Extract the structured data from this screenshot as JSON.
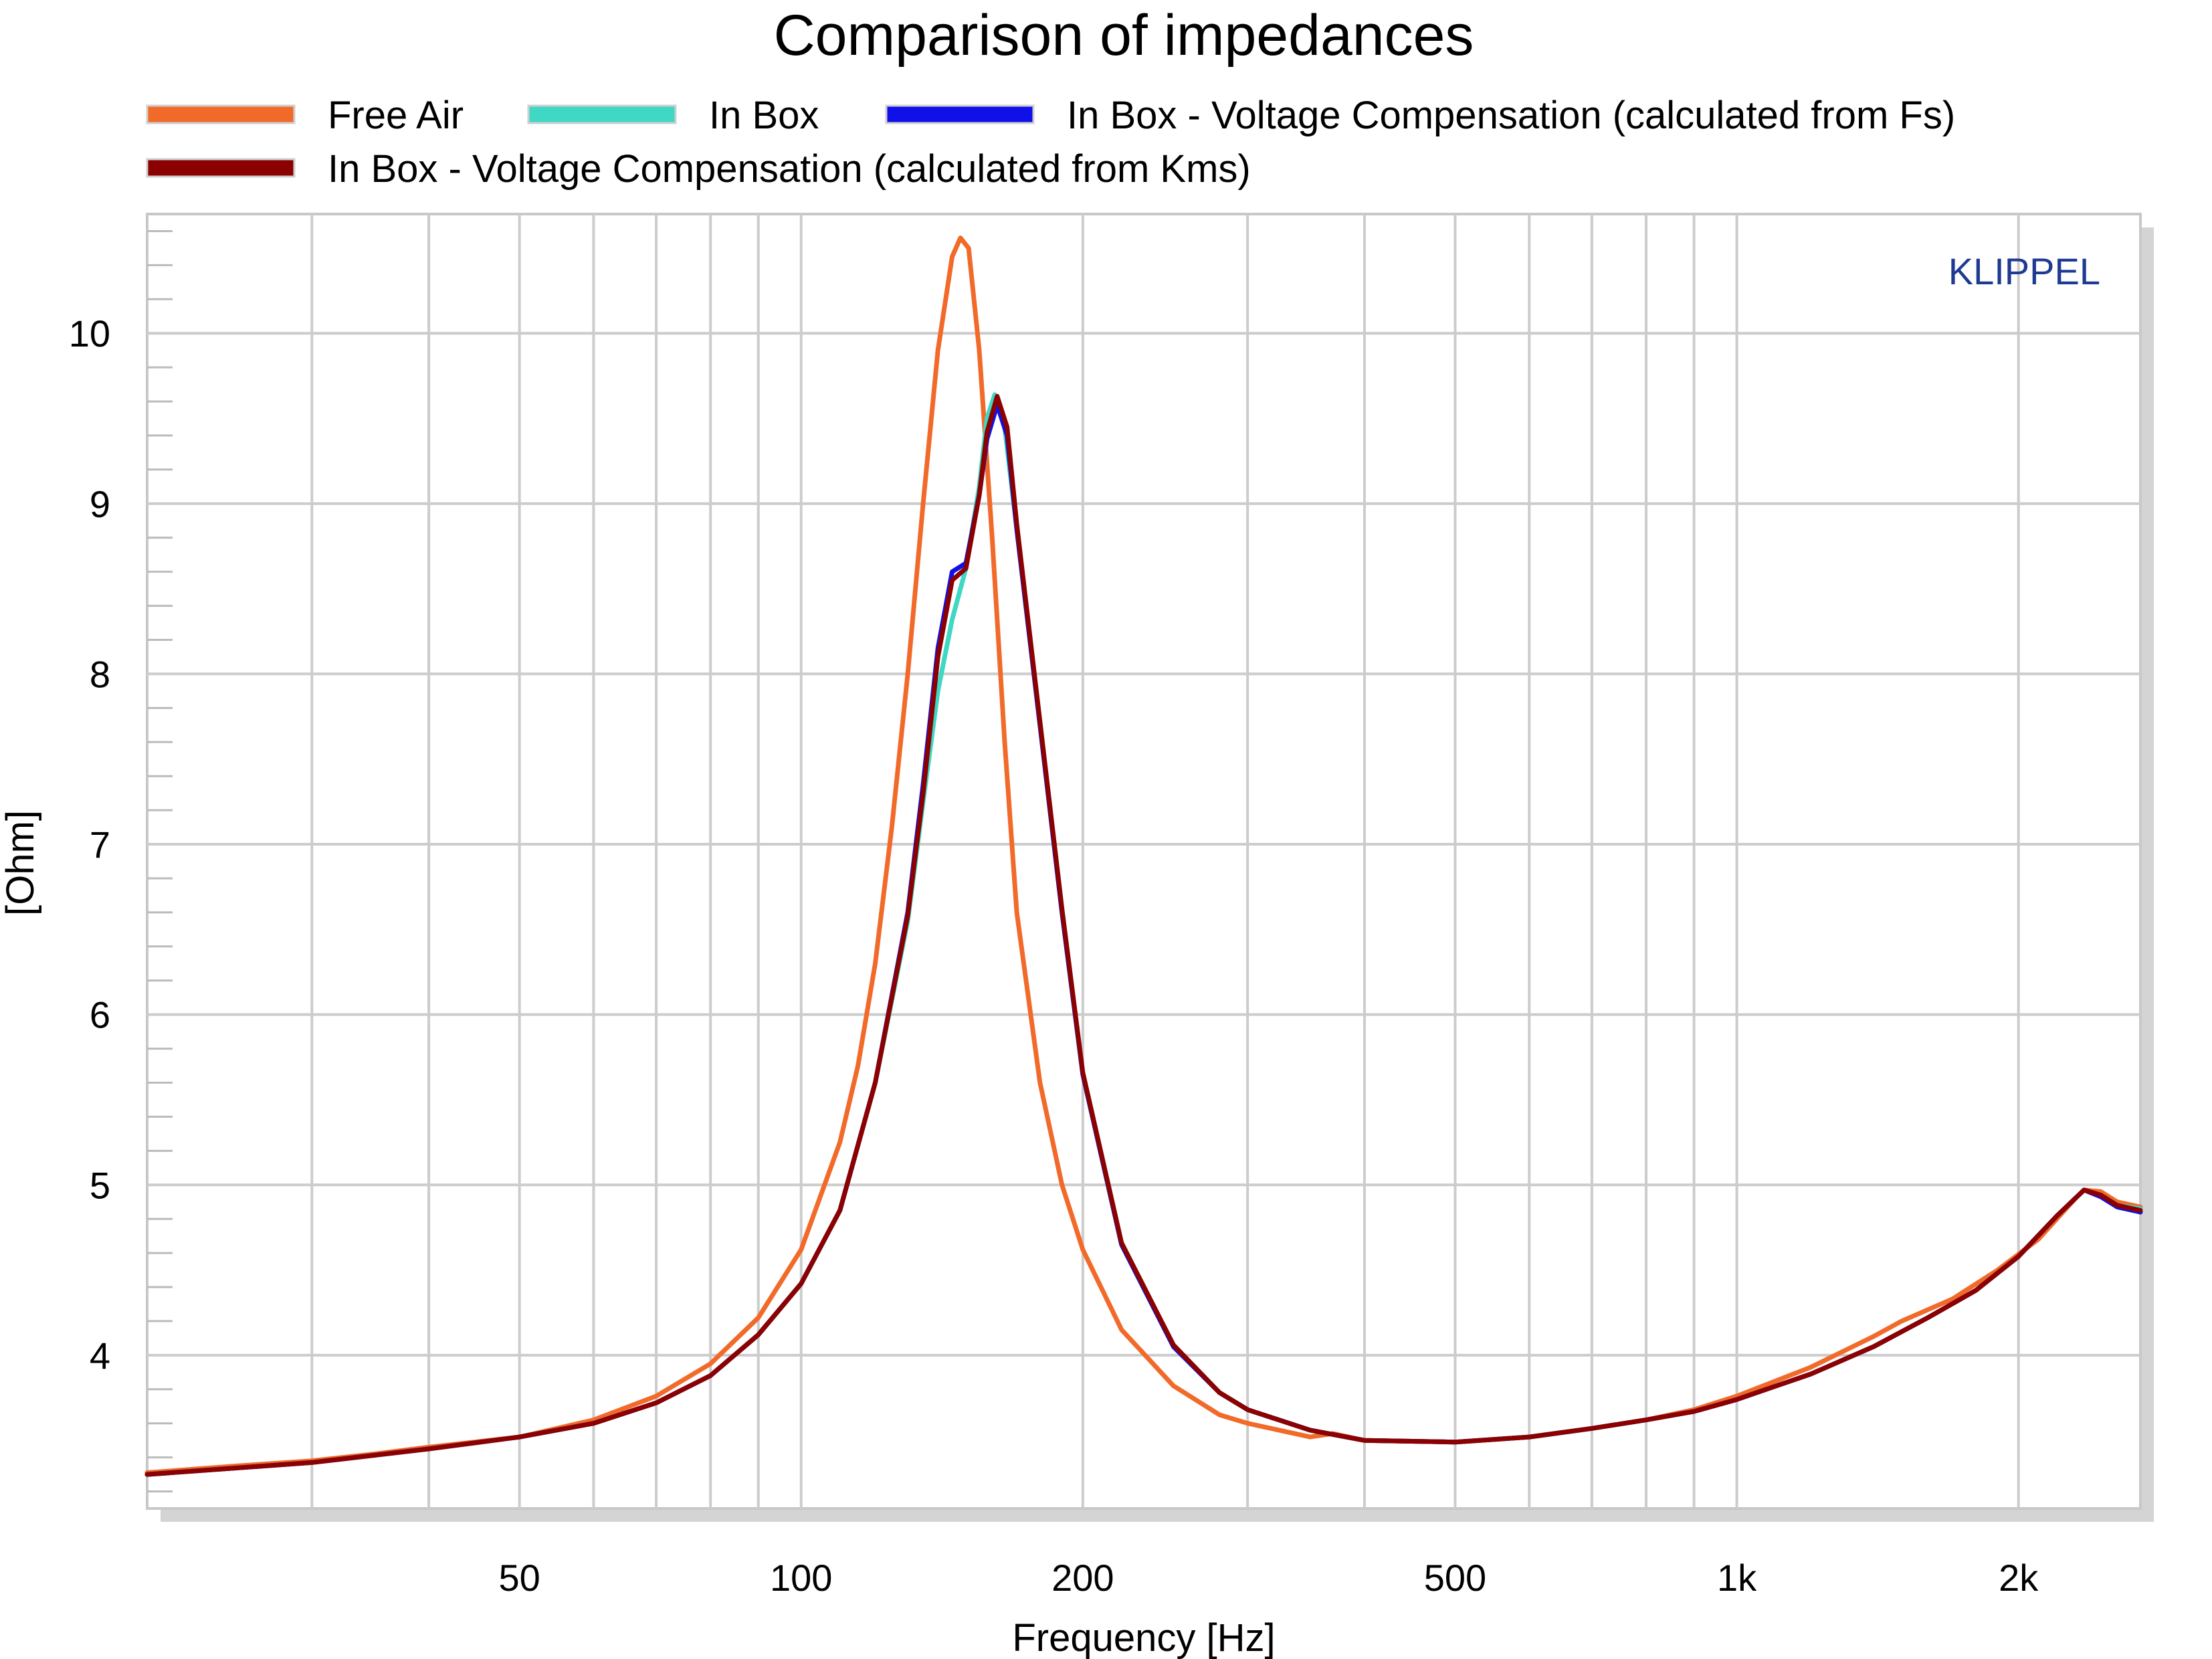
{
  "chart_data": {
    "type": "line",
    "title": "Comparison of impedances",
    "xlabel": "Frequency [Hz]",
    "ylabel": "[Ohm]",
    "x_scale": "log",
    "xlim": [
      20,
      2700
    ],
    "ylim": [
      3.1,
      10.7
    ],
    "grid": true,
    "legend_position": "top",
    "watermark": {
      "text": "KLIPPEL",
      "color": "#1f3a93"
    },
    "x_ticks": [
      {
        "value": 50,
        "label": "50"
      },
      {
        "value": 100,
        "label": "100"
      },
      {
        "value": 200,
        "label": "200"
      },
      {
        "value": 500,
        "label": "500"
      },
      {
        "value": 1000,
        "label": "1k"
      },
      {
        "value": 2000,
        "label": "2k"
      }
    ],
    "y_ticks": [
      {
        "value": 4,
        "label": "4"
      },
      {
        "value": 5,
        "label": "5"
      },
      {
        "value": 6,
        "label": "6"
      },
      {
        "value": 7,
        "label": "7"
      },
      {
        "value": 8,
        "label": "8"
      },
      {
        "value": 9,
        "label": "9"
      },
      {
        "value": 10,
        "label": "10"
      }
    ],
    "series": [
      {
        "name": "Free Air",
        "color": "#f26a2a",
        "points": [
          [
            20,
            3.31
          ],
          [
            25,
            3.35
          ],
          [
            30,
            3.38
          ],
          [
            35,
            3.42
          ],
          [
            40,
            3.46
          ],
          [
            50,
            3.52
          ],
          [
            60,
            3.62
          ],
          [
            70,
            3.76
          ],
          [
            80,
            3.95
          ],
          [
            90,
            4.22
          ],
          [
            100,
            4.62
          ],
          [
            110,
            5.25
          ],
          [
            115,
            5.7
          ],
          [
            120,
            6.3
          ],
          [
            125,
            7.1
          ],
          [
            130,
            8.0
          ],
          [
            135,
            9.0
          ],
          [
            140,
            9.9
          ],
          [
            145,
            10.45
          ],
          [
            148,
            10.56
          ],
          [
            151,
            10.5
          ],
          [
            155,
            9.9
          ],
          [
            160,
            8.8
          ],
          [
            165,
            7.6
          ],
          [
            170,
            6.6
          ],
          [
            180,
            5.6
          ],
          [
            190,
            5.0
          ],
          [
            200,
            4.62
          ],
          [
            220,
            4.15
          ],
          [
            250,
            3.82
          ],
          [
            280,
            3.65
          ],
          [
            300,
            3.6
          ],
          [
            350,
            3.52
          ],
          [
            370,
            3.54
          ],
          [
            400,
            3.5
          ],
          [
            500,
            3.49
          ],
          [
            600,
            3.52
          ],
          [
            700,
            3.57
          ],
          [
            800,
            3.62
          ],
          [
            900,
            3.68
          ],
          [
            1000,
            3.76
          ],
          [
            1200,
            3.93
          ],
          [
            1400,
            4.11
          ],
          [
            1500,
            4.2
          ],
          [
            1700,
            4.33
          ],
          [
            1900,
            4.5
          ],
          [
            2100,
            4.68
          ],
          [
            2300,
            4.92
          ],
          [
            2350,
            4.97
          ],
          [
            2450,
            4.96
          ],
          [
            2550,
            4.9
          ],
          [
            2700,
            4.87
          ]
        ]
      },
      {
        "name": "In Box",
        "color": "#3ed8c4",
        "points": [
          [
            20,
            3.3
          ],
          [
            30,
            3.37
          ],
          [
            40,
            3.45
          ],
          [
            50,
            3.52
          ],
          [
            60,
            3.6
          ],
          [
            70,
            3.72
          ],
          [
            80,
            3.88
          ],
          [
            90,
            4.12
          ],
          [
            100,
            4.42
          ],
          [
            110,
            4.85
          ],
          [
            120,
            5.6
          ],
          [
            130,
            6.55
          ],
          [
            135,
            7.25
          ],
          [
            140,
            7.9
          ],
          [
            145,
            8.32
          ],
          [
            150,
            8.62
          ],
          [
            155,
            9.1
          ],
          [
            158,
            9.5
          ],
          [
            161,
            9.64
          ],
          [
            165,
            9.45
          ],
          [
            170,
            8.85
          ],
          [
            180,
            7.7
          ],
          [
            190,
            6.6
          ],
          [
            200,
            5.65
          ],
          [
            220,
            4.65
          ],
          [
            250,
            4.05
          ],
          [
            280,
            3.78
          ],
          [
            300,
            3.68
          ],
          [
            350,
            3.56
          ],
          [
            400,
            3.5
          ],
          [
            500,
            3.49
          ],
          [
            600,
            3.52
          ],
          [
            700,
            3.57
          ],
          [
            800,
            3.62
          ],
          [
            900,
            3.67
          ],
          [
            1000,
            3.74
          ],
          [
            1200,
            3.89
          ],
          [
            1400,
            4.05
          ],
          [
            1600,
            4.22
          ],
          [
            1800,
            4.38
          ],
          [
            2000,
            4.58
          ],
          [
            2200,
            4.82
          ],
          [
            2350,
            4.97
          ],
          [
            2450,
            4.94
          ],
          [
            2550,
            4.88
          ],
          [
            2700,
            4.86
          ]
        ]
      },
      {
        "name": "In Box - Voltage Compensation (calculated from Fs)",
        "color": "#1010e8",
        "points": [
          [
            20,
            3.3
          ],
          [
            30,
            3.37
          ],
          [
            40,
            3.45
          ],
          [
            50,
            3.52
          ],
          [
            60,
            3.6
          ],
          [
            70,
            3.72
          ],
          [
            80,
            3.88
          ],
          [
            90,
            4.12
          ],
          [
            100,
            4.42
          ],
          [
            110,
            4.85
          ],
          [
            120,
            5.6
          ],
          [
            130,
            6.6
          ],
          [
            135,
            7.35
          ],
          [
            140,
            8.15
          ],
          [
            145,
            8.6
          ],
          [
            150,
            8.65
          ],
          [
            155,
            9.05
          ],
          [
            158,
            9.38
          ],
          [
            162,
            9.58
          ],
          [
            166,
            9.4
          ],
          [
            170,
            8.85
          ],
          [
            180,
            7.7
          ],
          [
            190,
            6.6
          ],
          [
            200,
            5.65
          ],
          [
            220,
            4.65
          ],
          [
            250,
            4.05
          ],
          [
            280,
            3.78
          ],
          [
            300,
            3.68
          ],
          [
            350,
            3.56
          ],
          [
            400,
            3.5
          ],
          [
            500,
            3.49
          ],
          [
            600,
            3.52
          ],
          [
            700,
            3.57
          ],
          [
            800,
            3.62
          ],
          [
            900,
            3.67
          ],
          [
            1000,
            3.74
          ],
          [
            1200,
            3.89
          ],
          [
            1400,
            4.05
          ],
          [
            1600,
            4.22
          ],
          [
            1800,
            4.38
          ],
          [
            2000,
            4.58
          ],
          [
            2200,
            4.82
          ],
          [
            2350,
            4.97
          ],
          [
            2450,
            4.93
          ],
          [
            2550,
            4.87
          ],
          [
            2700,
            4.84
          ]
        ]
      },
      {
        "name": "In Box - Voltage Compensation (calculated from Kms)",
        "color": "#8b0000",
        "points": [
          [
            20,
            3.3
          ],
          [
            30,
            3.37
          ],
          [
            40,
            3.45
          ],
          [
            50,
            3.52
          ],
          [
            60,
            3.6
          ],
          [
            70,
            3.72
          ],
          [
            80,
            3.88
          ],
          [
            90,
            4.12
          ],
          [
            100,
            4.42
          ],
          [
            110,
            4.85
          ],
          [
            120,
            5.6
          ],
          [
            130,
            6.58
          ],
          [
            135,
            7.3
          ],
          [
            140,
            8.1
          ],
          [
            145,
            8.55
          ],
          [
            150,
            8.62
          ],
          [
            155,
            9.05
          ],
          [
            158,
            9.42
          ],
          [
            162,
            9.63
          ],
          [
            166,
            9.45
          ],
          [
            170,
            8.88
          ],
          [
            180,
            7.72
          ],
          [
            190,
            6.62
          ],
          [
            200,
            5.66
          ],
          [
            220,
            4.66
          ],
          [
            250,
            4.06
          ],
          [
            280,
            3.78
          ],
          [
            300,
            3.68
          ],
          [
            350,
            3.56
          ],
          [
            400,
            3.5
          ],
          [
            500,
            3.49
          ],
          [
            600,
            3.52
          ],
          [
            700,
            3.57
          ],
          [
            800,
            3.62
          ],
          [
            900,
            3.67
          ],
          [
            1000,
            3.74
          ],
          [
            1200,
            3.89
          ],
          [
            1400,
            4.05
          ],
          [
            1600,
            4.22
          ],
          [
            1800,
            4.38
          ],
          [
            2000,
            4.58
          ],
          [
            2200,
            4.82
          ],
          [
            2350,
            4.97
          ],
          [
            2450,
            4.94
          ],
          [
            2550,
            4.88
          ],
          [
            2700,
            4.85
          ]
        ]
      }
    ]
  }
}
